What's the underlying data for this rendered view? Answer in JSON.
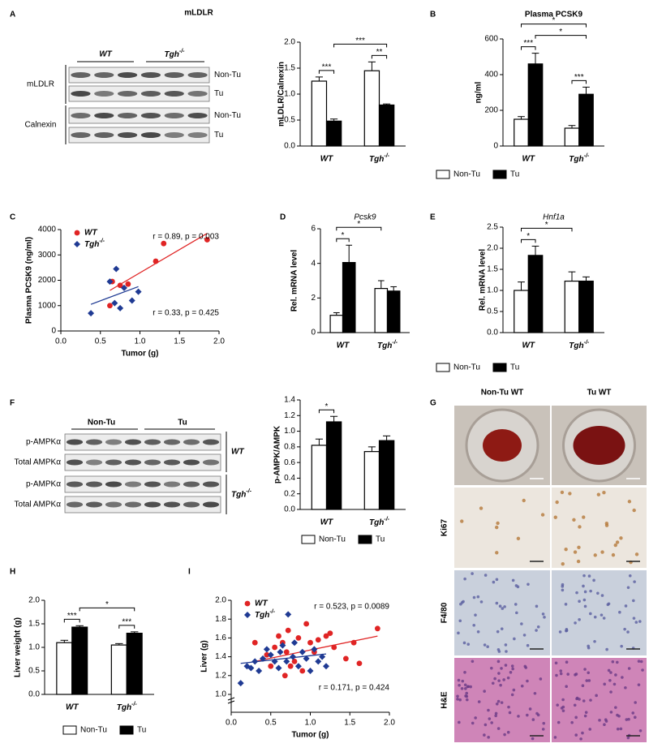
{
  "chart_data": [
    {
      "type": "bar",
      "categories": [
        "WT",
        "Tgh-/-"
      ],
      "y_label": "mLDLR/Calnexin",
      "ylim": [
        0,
        2
      ],
      "yticks": [
        {
          "value": 0,
          "label": "0.0"
        },
        0.5,
        {
          "value": 1,
          "label": "1.0"
        },
        1.5,
        {
          "value": 2,
          "label": "2.0"
        }
      ],
      "series": [
        {
          "name": "Non-Tu",
          "color": "#ffffff",
          "values": [
            1.25,
            1.45
          ],
          "errors": [
            0.08,
            0.17
          ]
        },
        {
          "name": "Tu",
          "color": "#000000",
          "values": [
            0.48,
            0.79
          ],
          "errors": [
            0.04,
            0.02
          ]
        }
      ],
      "significance": [
        {
          "label": "***",
          "from": [
            0,
            0
          ],
          "to": [
            1,
            0
          ]
        },
        {
          "label": "**",
          "from": [
            0,
            1
          ],
          "to": [
            1,
            1
          ]
        },
        {
          "label": "***",
          "from": [
            1,
            0
          ],
          "to": [
            1,
            1
          ]
        }
      ]
    },
    {
      "type": "bar",
      "panel": "B",
      "title": "Plasma PCSK9",
      "categories": [
        "WT",
        "Tgh-/-"
      ],
      "y_label": "ng/ml",
      "ylim": [
        0,
        600
      ],
      "yticks": [
        0,
        200,
        400,
        600
      ],
      "legend": true,
      "series": [
        {
          "name": "Non-Tu",
          "color": "#ffffff",
          "values": [
            150,
            100
          ],
          "errors": [
            15,
            15
          ]
        },
        {
          "name": "Tu",
          "color": "#000000",
          "values": [
            460,
            290
          ],
          "errors": [
            60,
            40
          ]
        }
      ],
      "significance": [
        {
          "label": "***",
          "from": [
            0,
            0
          ],
          "to": [
            1,
            0
          ]
        },
        {
          "label": "***",
          "from": [
            0,
            1
          ],
          "to": [
            1,
            1
          ]
        },
        {
          "label": "*",
          "from": [
            1,
            0
          ],
          "to": [
            1,
            1
          ]
        },
        {
          "label": "*",
          "from": [
            0,
            0
          ],
          "to": [
            1,
            1
          ]
        }
      ]
    },
    {
      "type": "scatter",
      "panel": "C",
      "x_label": "Tumor (g)",
      "y_label": "Plasma PCSK9 (ng/ml)",
      "xlim": [
        0,
        2
      ],
      "xticks": [
        {
          "value": 0,
          "label": "0.0"
        },
        0.5,
        {
          "value": 1,
          "label": "1.0"
        },
        1.5,
        {
          "value": 2,
          "label": "2.0"
        }
      ],
      "ylim": [
        0,
        4000
      ],
      "yticks": [
        0,
        1000,
        2000,
        3000,
        4000
      ],
      "series": [
        {
          "name": "WT",
          "color": "#e02424",
          "marker": "circle",
          "x": [
            0.62,
            0.65,
            0.75,
            0.85,
            1.2,
            1.3,
            1.85
          ],
          "values": [
            1000,
            1950,
            1800,
            1850,
            2750,
            3450,
            3600
          ],
          "fit": {
            "x": [
              0.62,
              1.85
            ],
            "y": [
              1600,
              3850
            ]
          }
        },
        {
          "name": "Tgh-/-",
          "color": "#1f3a93",
          "marker": "diamond",
          "x": [
            0.38,
            0.62,
            0.68,
            0.7,
            0.75,
            0.8,
            0.9,
            0.98
          ],
          "values": [
            700,
            1950,
            1100,
            2450,
            900,
            1700,
            1200,
            1550
          ],
          "fit": {
            "x": [
              0.38,
              0.98
            ],
            "y": [
              1050,
              1750
            ]
          }
        }
      ],
      "annotations": [
        {
          "text": "r = 0.89, p = 0.003",
          "color": "#e02424"
        },
        {
          "text": "r = 0.33, p = 0.425",
          "color": "#1f3a93"
        }
      ]
    },
    {
      "type": "bar",
      "panel": "D",
      "title": "Pcsk9",
      "categories": [
        "WT",
        "Tgh-/-"
      ],
      "y_label": "Rel. mRNA level",
      "ylim": [
        0,
        6
      ],
      "yticks": [
        0,
        2,
        4,
        6
      ],
      "series": [
        {
          "name": "Non-Tu",
          "color": "#ffffff",
          "values": [
            1.0,
            2.55
          ],
          "errors": [
            0.15,
            0.45
          ]
        },
        {
          "name": "Tu",
          "color": "#000000",
          "values": [
            4.05,
            2.4
          ],
          "errors": [
            1.0,
            0.25
          ]
        }
      ],
      "significance": [
        {
          "label": "*",
          "from": [
            0,
            0
          ],
          "to": [
            1,
            0
          ]
        },
        {
          "label": "*",
          "from": [
            0,
            0
          ],
          "to": [
            0,
            1
          ]
        }
      ]
    },
    {
      "type": "bar",
      "panel": "E",
      "title": "Hnf1a",
      "categories": [
        "WT",
        "Tgh-/-"
      ],
      "y_label": "Rel. mRNA level",
      "ylim": [
        0,
        2.5
      ],
      "yticks": [
        {
          "value": 0,
          "label": "0.0"
        },
        0.5,
        {
          "value": 1,
          "label": "1.0"
        },
        1.5,
        {
          "value": 2,
          "label": "2.0"
        },
        2.5
      ],
      "legend": true,
      "series": [
        {
          "name": "Non-Tu",
          "color": "#ffffff",
          "values": [
            1.0,
            1.22
          ],
          "errors": [
            0.2,
            0.22
          ]
        },
        {
          "name": "Tu",
          "color": "#000000",
          "values": [
            1.83,
            1.22
          ],
          "errors": [
            0.22,
            0.1
          ]
        }
      ],
      "significance": [
        {
          "label": "*",
          "from": [
            0,
            0
          ],
          "to": [
            1,
            0
          ]
        },
        {
          "label": "*",
          "from": [
            0,
            0
          ],
          "to": [
            0,
            1
          ]
        }
      ]
    },
    {
      "type": "bar",
      "categories": [
        "WT",
        "Tgh-/-"
      ],
      "y_label": "p-AMPK/AMPK",
      "ylim": [
        0,
        1.4
      ],
      "yticks": [
        {
          "value": 0,
          "label": "0.0"
        },
        0.2,
        0.4,
        0.6,
        0.8,
        {
          "value": 1,
          "label": "1.0"
        },
        1.2,
        1.4
      ],
      "legend": true,
      "series": [
        {
          "name": "Non-Tu",
          "color": "#ffffff",
          "values": [
            0.82,
            0.74
          ],
          "errors": [
            0.08,
            0.06
          ]
        },
        {
          "name": "Tu",
          "color": "#000000",
          "values": [
            1.12,
            0.88
          ],
          "errors": [
            0.07,
            0.06
          ]
        }
      ],
      "significance": [
        {
          "label": "*",
          "from": [
            0,
            0
          ],
          "to": [
            1,
            0
          ]
        }
      ]
    },
    {
      "type": "bar",
      "panel": "H",
      "categories": [
        "WT",
        "Tgh-/-"
      ],
      "y_label": "Liver weight (g)",
      "ylim": [
        0,
        2
      ],
      "yticks": [
        {
          "value": 0,
          "label": "0.0"
        },
        0.5,
        {
          "value": 1,
          "label": "1.0"
        },
        1.5,
        {
          "value": 2,
          "label": "2.0"
        }
      ],
      "legend": true,
      "series": [
        {
          "name": "Non-Tu",
          "color": "#ffffff",
          "values": [
            1.1,
            1.05
          ],
          "errors": [
            0.05,
            0.03
          ]
        },
        {
          "name": "Tu",
          "color": "#000000",
          "values": [
            1.43,
            1.3
          ],
          "errors": [
            0.03,
            0.03
          ]
        }
      ],
      "significance": [
        {
          "label": "***",
          "from": [
            0,
            0
          ],
          "to": [
            1,
            0
          ]
        },
        {
          "label": "***",
          "from": [
            0,
            1
          ],
          "to": [
            1,
            1
          ]
        },
        {
          "label": "*",
          "from": [
            1,
            0
          ],
          "to": [
            1,
            1
          ]
        }
      ]
    },
    {
      "type": "scatter",
      "panel": "I",
      "x_label": "Tumor (g)",
      "y_label": "Liver (g)",
      "xlim": [
        0,
        2
      ],
      "xticks": [
        {
          "value": 0,
          "label": "0.0"
        },
        0.5,
        {
          "value": 1,
          "label": "1.0"
        },
        1.5,
        {
          "value": 2,
          "label": "2.0"
        }
      ],
      "ylim": [
        1,
        2
      ],
      "yticks": [
        {
          "value": 1,
          "label": "1.0"
        },
        1.2,
        1.4,
        1.6,
        1.8,
        {
          "value": 2,
          "label": "2.0"
        }
      ],
      "series": [
        {
          "name": "WT",
          "color": "#e02424",
          "marker": "circle",
          "x": [
            0.3,
            0.45,
            0.5,
            0.55,
            0.6,
            0.65,
            0.68,
            0.7,
            0.72,
            0.75,
            0.8,
            0.85,
            0.9,
            0.95,
            1.0,
            1.05,
            1.1,
            1.2,
            1.25,
            1.3,
            1.45,
            1.55,
            1.62,
            1.85
          ],
          "values": [
            1.55,
            1.42,
            1.3,
            1.5,
            1.62,
            1.55,
            1.2,
            1.45,
            1.68,
            1.3,
            1.35,
            1.6,
            1.25,
            1.75,
            1.55,
            1.45,
            1.58,
            1.62,
            1.65,
            1.5,
            1.38,
            1.55,
            1.33,
            1.7
          ],
          "fit": {
            "x": [
              0.3,
              1.85
            ],
            "y": [
              1.35,
              1.62
            ]
          }
        },
        {
          "name": "Tgh-/-",
          "color": "#1f3a93",
          "marker": "diamond",
          "x": [
            0.12,
            0.2,
            0.25,
            0.3,
            0.35,
            0.4,
            0.45,
            0.5,
            0.55,
            0.6,
            0.62,
            0.65,
            0.7,
            0.72,
            0.78,
            0.8,
            0.85,
            0.9,
            0.95,
            1.0,
            1.05,
            1.1,
            1.15,
            1.2
          ],
          "values": [
            1.12,
            1.3,
            1.28,
            1.35,
            1.25,
            1.38,
            1.48,
            1.42,
            1.35,
            1.28,
            1.45,
            1.52,
            1.35,
            1.85,
            1.4,
            1.55,
            1.3,
            1.45,
            1.38,
            1.25,
            1.48,
            1.35,
            1.4,
            1.3
          ],
          "fit": {
            "x": [
              0.12,
              1.2
            ],
            "y": [
              1.33,
              1.43
            ]
          }
        }
      ],
      "annotations": [
        {
          "text": "r = 0.523, p = 0.0089",
          "color": "#e02424"
        },
        {
          "text": "r = 0.171, p = 0.424",
          "color": "#1f3a93"
        }
      ]
    }
  ],
  "blots": [
    {
      "panel": "A",
      "title": "mLDLR",
      "groups": [
        "WT",
        "Tgh-/-"
      ],
      "row_groups": [
        "mLDLR",
        "Calnexin"
      ],
      "row_labels": [
        "Non-Tu",
        "Tu",
        "Non-Tu",
        "Tu"
      ]
    },
    {
      "panel": "F",
      "groups": [
        "Non-Tu",
        "Tu"
      ],
      "row_groups": [
        "WT",
        "Tgh-/-"
      ],
      "row_labels": [
        "p-AMPKα",
        "Total AMPKα",
        "p-AMPKα",
        "Total AMPKα"
      ]
    }
  ],
  "images": {
    "panel": "G",
    "columns": [
      "Non-Tu WT",
      "Tu WT"
    ],
    "rows": [
      "Ki67",
      "F4/80",
      "H&E"
    ]
  }
}
